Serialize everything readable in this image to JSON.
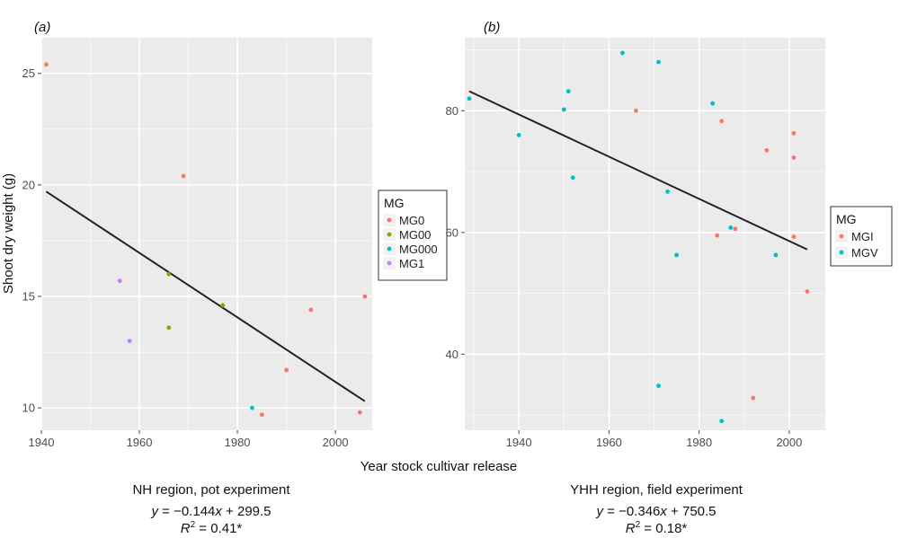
{
  "xlabel_shared": "Year stock cultivar release",
  "chart_data": [
    {
      "type": "scatter",
      "panel_label": "(a)",
      "ylabel": "Shoot dry weight (g)",
      "xlim": [
        1940,
        2007.5
      ],
      "ylim": [
        9,
        26.6
      ],
      "x_ticks": [
        1940,
        1960,
        1980,
        2000
      ],
      "y_ticks": [
        10,
        15,
        20,
        25
      ],
      "grid": true,
      "legend": {
        "title": "MG",
        "position": "right",
        "entries": [
          {
            "label": "MG0",
            "color": "#F8766D"
          },
          {
            "label": "MG00",
            "color": "#7CAE00"
          },
          {
            "label": "MG000",
            "color": "#00BFC4"
          },
          {
            "label": "MG1",
            "color": "#C77CFF"
          }
        ]
      },
      "series": [
        {
          "name": "MG0",
          "color": "#F8766D",
          "x": [
            1941,
            1969,
            1985,
            1990,
            1995,
            2005,
            2006
          ],
          "y": [
            25.4,
            20.4,
            9.7,
            11.7,
            14.4,
            9.8,
            15.0
          ]
        },
        {
          "name": "MG00",
          "color": "#7CAE00",
          "x": [
            1966,
            1966,
            1977
          ],
          "y": [
            16.0,
            13.6,
            14.6
          ]
        },
        {
          "name": "MG000",
          "color": "#00BFC4",
          "x": [
            1983
          ],
          "y": [
            10.0
          ]
        },
        {
          "name": "MG1",
          "color": "#C77CFF",
          "x": [
            1956,
            1958
          ],
          "y": [
            15.7,
            13.0
          ]
        }
      ],
      "regression": {
        "x": [
          1941,
          2006
        ],
        "y": [
          19.7,
          10.3
        ],
        "color": "#222222"
      },
      "caption": {
        "title": "NH region, pot experiment",
        "eq_y": "y",
        "eq_x": "x",
        "eq_rest": "−0.144",
        "eq_const": "+ 299.5",
        "r2_R": "R",
        "r2_sup": "2",
        "r2_value": "= 0.41*"
      }
    },
    {
      "type": "scatter",
      "panel_label": "(b)",
      "ylabel": "",
      "xlim": [
        1928,
        2008
      ],
      "ylim": [
        27.5,
        92
      ],
      "x_ticks": [
        1940,
        1960,
        1980,
        2000
      ],
      "y_ticks": [
        40,
        60,
        80
      ],
      "grid": true,
      "legend": {
        "title": "MG",
        "position": "right",
        "entries": [
          {
            "label": "MGI",
            "color": "#F8766D"
          },
          {
            "label": "MGV",
            "color": "#00BFC4"
          }
        ]
      },
      "series": [
        {
          "name": "MGI",
          "color": "#F8766D",
          "x": [
            1966,
            1985,
            1984,
            1988,
            1992,
            1995,
            2001,
            2001,
            2001,
            2004
          ],
          "y": [
            80.0,
            78.3,
            59.5,
            60.6,
            32.8,
            73.5,
            76.3,
            72.3,
            59.3,
            50.3
          ]
        },
        {
          "name": "MGV",
          "color": "#00BFC4",
          "x": [
            1929,
            1940,
            1950,
            1951,
            1952,
            1963,
            1971,
            1971,
            1973,
            1975,
            1983,
            1985,
            1987,
            1997
          ],
          "y": [
            82.0,
            76.0,
            80.2,
            83.2,
            69.0,
            89.5,
            88.0,
            34.8,
            66.7,
            56.3,
            81.2,
            29.0,
            60.8,
            56.3
          ]
        }
      ],
      "regression": {
        "x": [
          1929,
          2004
        ],
        "y": [
          83.2,
          57.2
        ],
        "color": "#222222"
      },
      "caption": {
        "title": "YHH region, field experiment",
        "eq_y": "y",
        "eq_x": "x",
        "eq_rest": "−0.346",
        "eq_const": "+ 750.5",
        "r2_R": "R",
        "r2_sup": "2",
        "r2_value": "= 0.18*"
      }
    }
  ]
}
